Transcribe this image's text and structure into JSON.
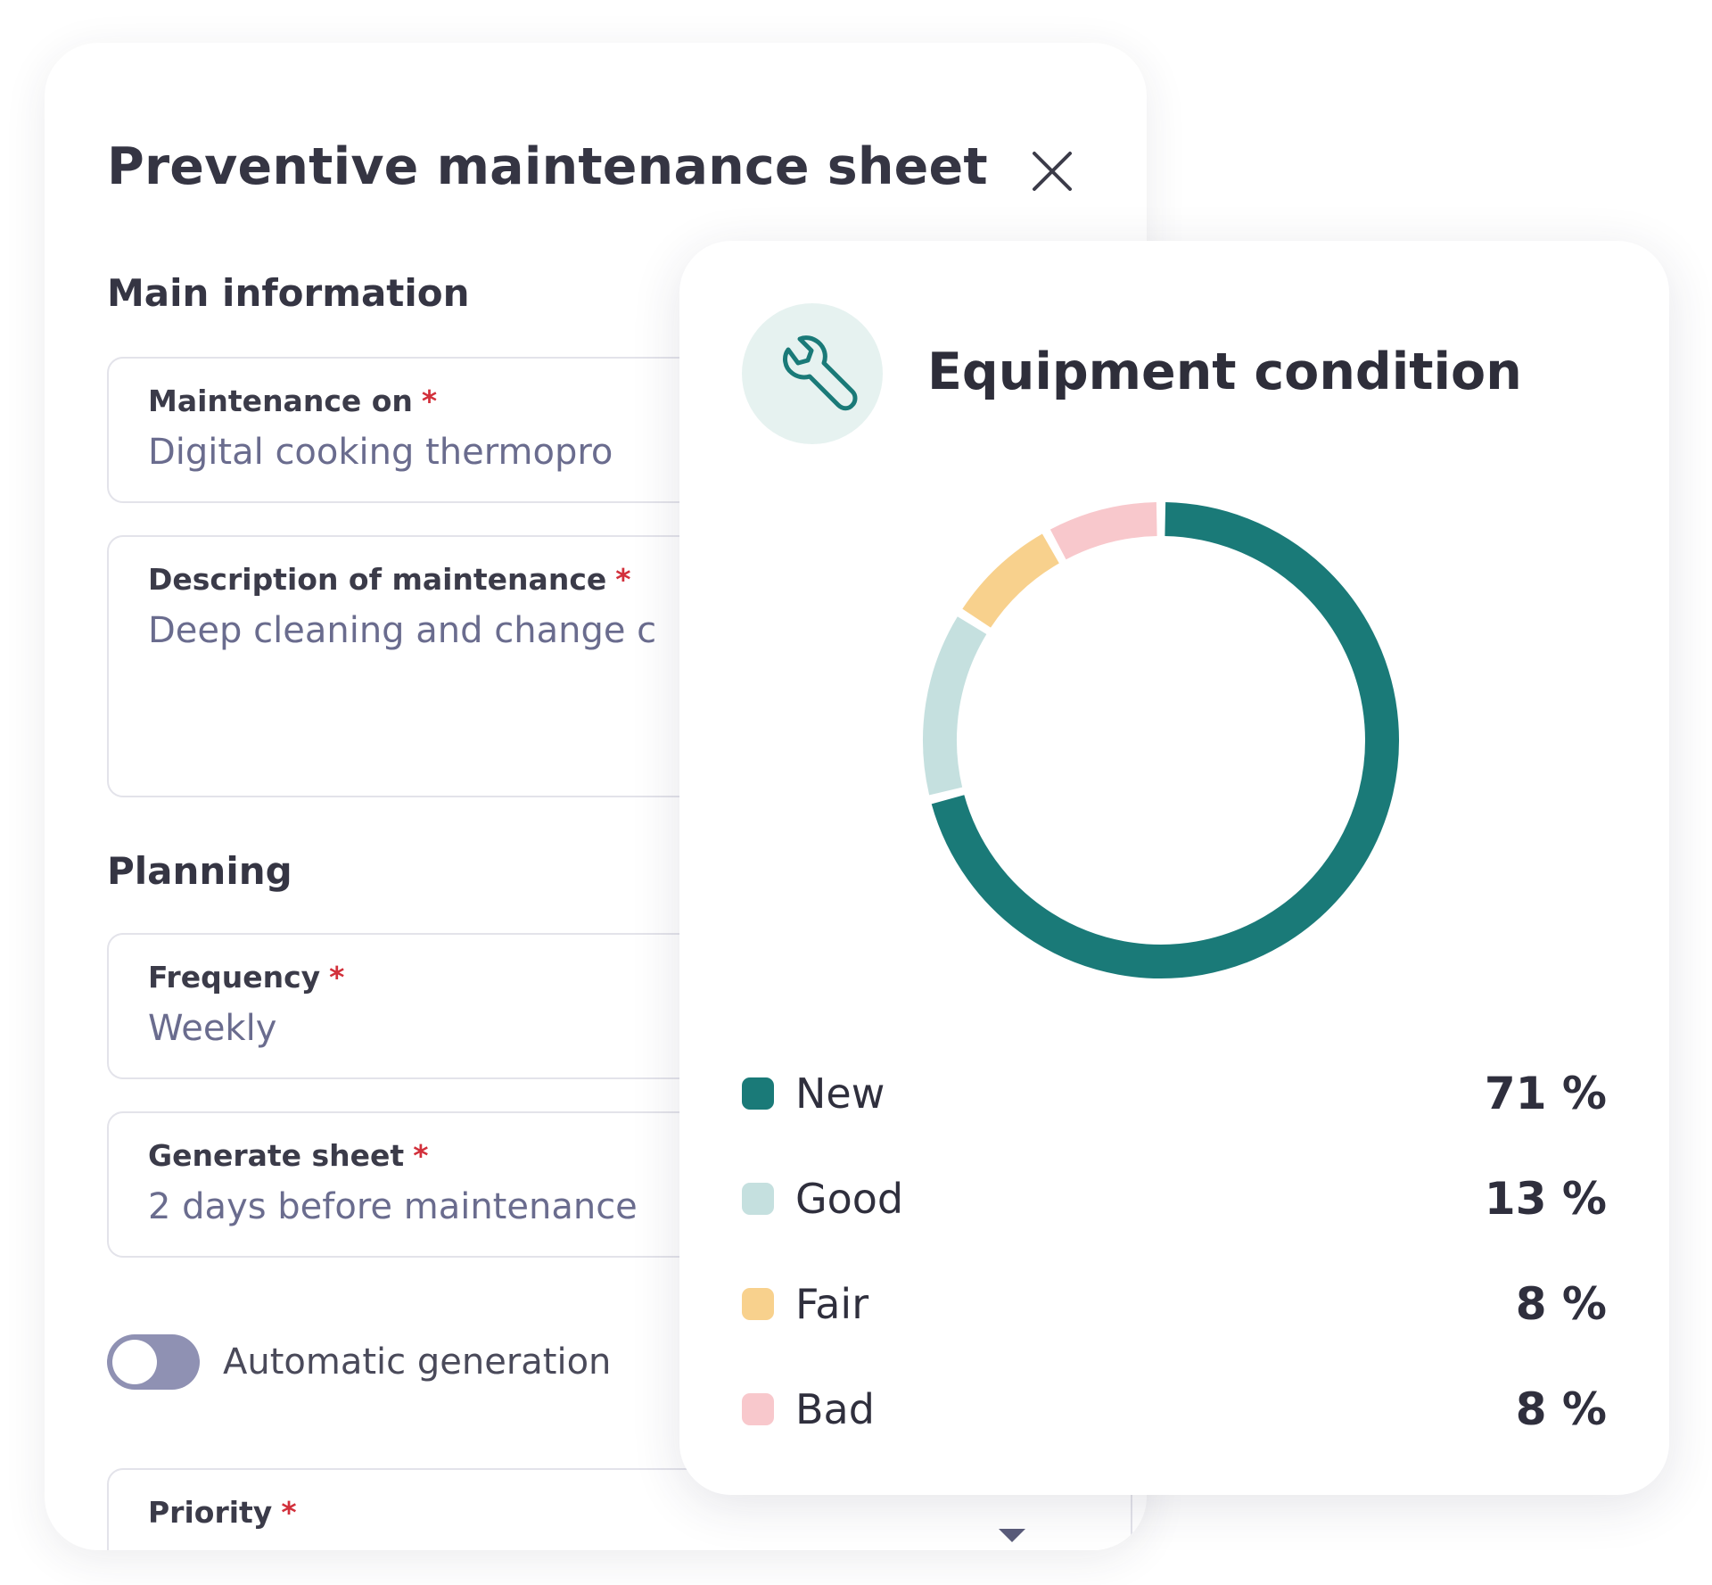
{
  "sheet": {
    "title": "Preventive maintenance sheet",
    "sections": {
      "main": "Main information",
      "planning": "Planning"
    },
    "fields": {
      "maintenance_on": {
        "label": "Maintenance on",
        "value": "Digital cooking thermopro"
      },
      "description": {
        "label": "Description of maintenance",
        "value": "Deep cleaning and change c"
      },
      "frequency": {
        "label": "Frequency",
        "value": "Weekly"
      },
      "generate_sheet": {
        "label": "Generate sheet",
        "value": "2 days before maintenance"
      },
      "priority": {
        "label": "Priority",
        "value": ""
      }
    },
    "required_mark": "*",
    "toggle": {
      "label": "Automatic generation",
      "state": "off"
    }
  },
  "card": {
    "title": "Equipment condition",
    "icon": "wrench-icon"
  },
  "chart_data": {
    "type": "pie",
    "style": "donut",
    "title": "Equipment condition",
    "series": [
      {
        "name": "New",
        "value": 71,
        "label": "71 %",
        "color": "#1a7a78"
      },
      {
        "name": "Good",
        "value": 13,
        "label": "13 %",
        "color": "#c5e0df"
      },
      {
        "name": "Fair",
        "value": 8,
        "label": "8 %",
        "color": "#f8d18d"
      },
      {
        "name": "Bad",
        "value": 8,
        "label": "8 %",
        "color": "#f8c8cc"
      }
    ],
    "legend_position": "bottom"
  }
}
